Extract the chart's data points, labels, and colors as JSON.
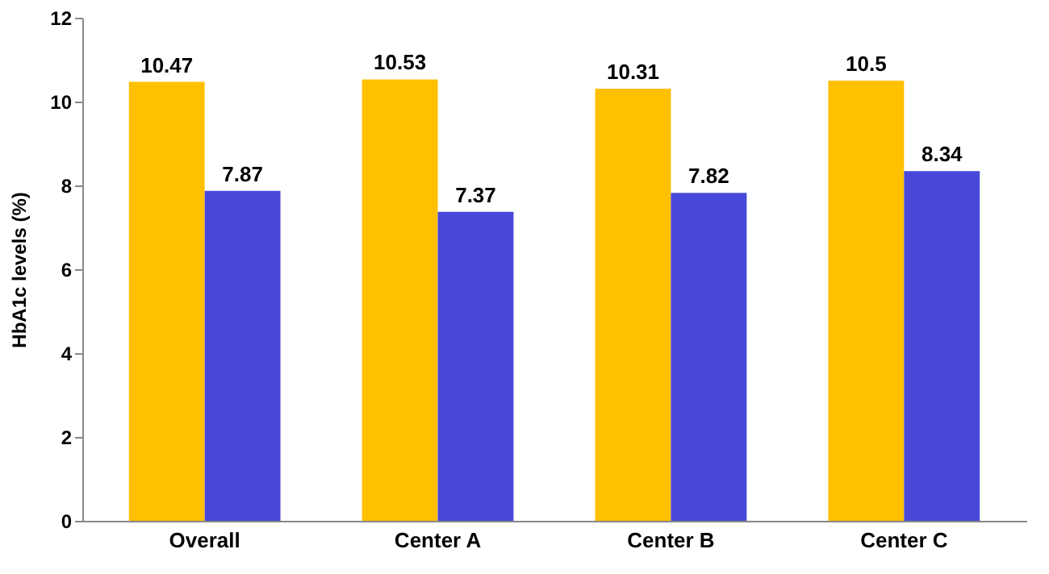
{
  "chart_data": {
    "type": "bar",
    "ylabel": "HbA1c levels (%)",
    "categories": [
      "Overall",
      "Center A",
      "Center B",
      "Center C"
    ],
    "series": [
      {
        "color": "#ffc000",
        "values": [
          10.47,
          10.53,
          10.31,
          10.5
        ]
      },
      {
        "color": "#4848d8",
        "values": [
          7.87,
          7.37,
          7.82,
          8.34
        ]
      }
    ],
    "ylim": [
      0,
      12
    ],
    "yticks": [
      0,
      2,
      4,
      6,
      8,
      10,
      12
    ],
    "grid": false,
    "legend": false,
    "data_labels": true
  }
}
